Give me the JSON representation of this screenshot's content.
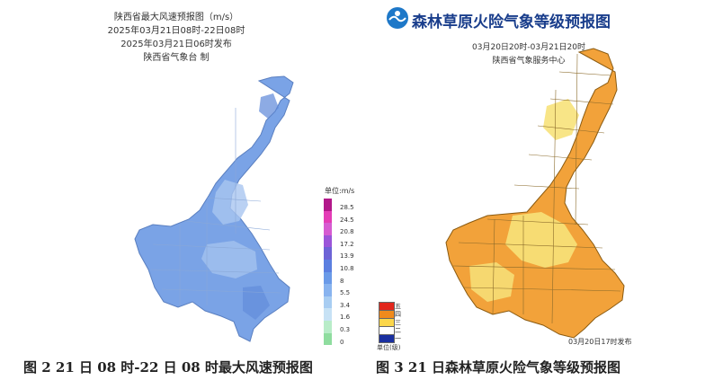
{
  "left": {
    "title_lines": [
      "陕西省最大风速预报图（m/s）",
      "2025年03月21日08时-22日08时",
      "2025年03月21日06时发布",
      "陕西省气象台 制"
    ],
    "legend": {
      "unit": "单位:m/s",
      "labels": [
        "28.5",
        "24.5",
        "20.8",
        "17.2",
        "13.9",
        "10.8",
        "8",
        "5.5",
        "3.4",
        "1.6",
        "0.3",
        "0"
      ],
      "colors": [
        "#b2188a",
        "#e43cb6",
        "#d65bd1",
        "#9b55d9",
        "#6d63d6",
        "#5b7fe0",
        "#6a9ae8",
        "#88b3ef",
        "#a8cdf2",
        "#c7e2f5",
        "#b8ecc8",
        "#8fdd9f"
      ]
    },
    "caption": "图 2  21 日 08 时-22 日 08 时最大风速预报图"
  },
  "right": {
    "title": "森林草原火险气象等级预报图",
    "subtitle_lines": [
      "03月20日20时-03月21日20时",
      "陕西省气象服务中心"
    ],
    "legend": {
      "labels": [
        "五",
        "四",
        "三",
        "二",
        "一"
      ],
      "colors": [
        "#e2261c",
        "#f08a1c",
        "#fbd64a",
        "#ffffff",
        "#1a2fa0"
      ],
      "unit": "单位(级)"
    },
    "footnote": "03月20日17时发布",
    "caption": "图 3  21 日森林草原火险气象等级预报图"
  },
  "colors": {
    "wind_base": "#7aa3e6",
    "wind_light": "#a9c6f0",
    "wind_dark": "#5d88d8",
    "fire_orange": "#f2a23a",
    "fire_yellow": "#f7e27a",
    "title_blue": "#1a3e8c"
  }
}
